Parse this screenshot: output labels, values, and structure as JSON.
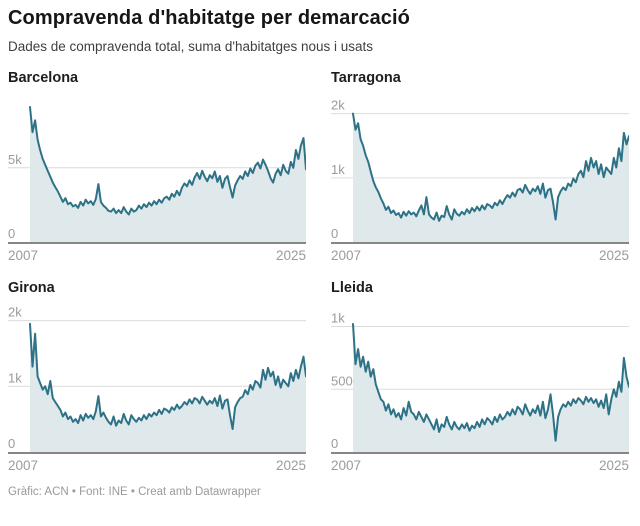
{
  "header": {
    "title": "Compravenda d'habitatge per demarcació",
    "subtitle": "Dades de compravenda total, suma d'habitatges nous i usats"
  },
  "footer": {
    "credit": "Gràfic: ACN • Font: INE • Creat amb Datawrapper"
  },
  "colors": {
    "line": "#2d7286",
    "fill": "#dfe9ec",
    "grid": "#dcdcdc",
    "axis": "#868686",
    "tick_label": "#9b9b9b"
  },
  "chart_data": [
    {
      "type": "area",
      "title": "Barcelona",
      "x_labels": [
        "2007",
        "2025"
      ],
      "x_range": [
        2007,
        2025
      ],
      "ylim": [
        0,
        9300
      ],
      "yticks": [
        {
          "value": 5000,
          "label": "5k"
        },
        {
          "value": 0,
          "label": "0"
        }
      ],
      "values": [
        9100,
        7400,
        8200,
        6900,
        6200,
        5600,
        5200,
        4800,
        4400,
        4000,
        3700,
        3400,
        3050,
        2700,
        2950,
        2550,
        2650,
        2400,
        2500,
        2300,
        2700,
        2450,
        2850,
        2600,
        2750,
        2500,
        2900,
        3900,
        2700,
        2450,
        2300,
        2100,
        2050,
        2250,
        1950,
        2150,
        1950,
        2350,
        2050,
        1850,
        2250,
        2050,
        2150,
        2450,
        2250,
        2550,
        2350,
        2650,
        2450,
        2750,
        2550,
        2850,
        2650,
        2950,
        3050,
        2850,
        3250,
        3050,
        3450,
        3150,
        3650,
        3950,
        3750,
        4150,
        3850,
        4350,
        4650,
        4250,
        4800,
        4400,
        4100,
        4500,
        4300,
        4750,
        4050,
        4450,
        3650,
        4250,
        4450,
        3700,
        3000,
        3800,
        4150,
        4450,
        4250,
        4750,
        4450,
        4950,
        4650,
        5150,
        5350,
        4950,
        5550,
        5200,
        4800,
        4300,
        4000,
        4600,
        4900,
        4500,
        5200,
        4800,
        4600,
        5400,
        5000,
        6200,
        5600,
        6500,
        7000,
        4900
      ]
    },
    {
      "type": "area",
      "title": "Tarragona",
      "x_labels": [
        "2007",
        "2025"
      ],
      "x_range": [
        2007,
        2025
      ],
      "ylim": [
        0,
        2150
      ],
      "yticks": [
        {
          "value": 2000,
          "label": "2k"
        },
        {
          "value": 1000,
          "label": "1k"
        },
        {
          "value": 0,
          "label": "0"
        }
      ],
      "values": [
        2000,
        1750,
        1850,
        1600,
        1500,
        1350,
        1250,
        1100,
        950,
        850,
        780,
        680,
        600,
        500,
        550,
        450,
        490,
        420,
        450,
        380,
        470,
        410,
        480,
        430,
        460,
        400,
        490,
        570,
        430,
        700,
        430,
        380,
        350,
        460,
        330,
        410,
        390,
        560,
        430,
        350,
        510,
        440,
        410,
        470,
        430,
        510,
        450,
        530,
        480,
        550,
        490,
        570,
        510,
        590,
        570,
        530,
        610,
        570,
        650,
        590,
        670,
        730,
        690,
        770,
        710,
        810,
        830,
        770,
        890,
        810,
        750,
        830,
        790,
        870,
        750,
        910,
        690,
        810,
        830,
        620,
        350,
        700,
        790,
        850,
        810,
        910,
        870,
        990,
        930,
        1060,
        1110,
        1010,
        1260,
        1110,
        1310,
        1160,
        1260,
        1060,
        1210,
        1010,
        1160,
        1110,
        1060,
        1310,
        1160,
        1460,
        1260,
        1700,
        1520,
        1650
      ]
    },
    {
      "type": "area",
      "title": "Girona",
      "x_labels": [
        "2007",
        "2025"
      ],
      "x_range": [
        2007,
        2025
      ],
      "ylim": [
        0,
        2100
      ],
      "yticks": [
        {
          "value": 2000,
          "label": "2k"
        },
        {
          "value": 1000,
          "label": "1k"
        },
        {
          "value": 0,
          "label": "0"
        }
      ],
      "values": [
        1950,
        1300,
        1800,
        1150,
        1050,
        950,
        1000,
        880,
        1080,
        820,
        760,
        700,
        640,
        540,
        600,
        500,
        540,
        460,
        500,
        440,
        560,
        480,
        580,
        520,
        560,
        500,
        620,
        850,
        540,
        600,
        520,
        460,
        420,
        540,
        400,
        480,
        440,
        580,
        480,
        420,
        560,
        500,
        460,
        520,
        480,
        560,
        500,
        580,
        540,
        600,
        560,
        640,
        580,
        660,
        640,
        600,
        680,
        640,
        720,
        660,
        700,
        760,
        720,
        800,
        740,
        820,
        800,
        740,
        840,
        780,
        720,
        780,
        740,
        820,
        700,
        860,
        660,
        780,
        800,
        560,
        350,
        680,
        760,
        820,
        840,
        940,
        880,
        1020,
        950,
        1080,
        1050,
        980,
        1250,
        1100,
        1280,
        1150,
        1220,
        1020,
        1150,
        980,
        1100,
        1050,
        1000,
        1200,
        1080,
        1250,
        1120,
        1300,
        1450,
        1150
      ]
    },
    {
      "type": "area",
      "title": "Lleida",
      "x_labels": [
        "2007",
        "2025"
      ],
      "x_range": [
        2007,
        2025
      ],
      "ylim": [
        0,
        1100
      ],
      "yticks": [
        {
          "value": 1000,
          "label": "1k"
        },
        {
          "value": 500,
          "label": "500"
        },
        {
          "value": 0,
          "label": "0"
        }
      ],
      "values": [
        1020,
        700,
        820,
        680,
        760,
        640,
        720,
        600,
        660,
        540,
        480,
        420,
        400,
        330,
        380,
        300,
        340,
        280,
        310,
        260,
        350,
        290,
        400,
        320,
        300,
        260,
        320,
        280,
        240,
        300,
        260,
        220,
        180,
        260,
        160,
        220,
        200,
        280,
        220,
        180,
        240,
        200,
        180,
        220,
        190,
        230,
        170,
        210,
        190,
        240,
        200,
        260,
        220,
        270,
        250,
        220,
        280,
        240,
        300,
        260,
        280,
        320,
        290,
        340,
        300,
        360,
        340,
        300,
        380,
        330,
        290,
        340,
        310,
        370,
        290,
        400,
        270,
        340,
        460,
        300,
        90,
        280,
        340,
        380,
        360,
        400,
        370,
        420,
        390,
        430,
        410,
        380,
        440,
        400,
        430,
        390,
        420,
        360,
        410,
        350,
        460,
        300,
        420,
        500,
        440,
        560,
        480,
        750,
        600,
        520
      ]
    }
  ]
}
